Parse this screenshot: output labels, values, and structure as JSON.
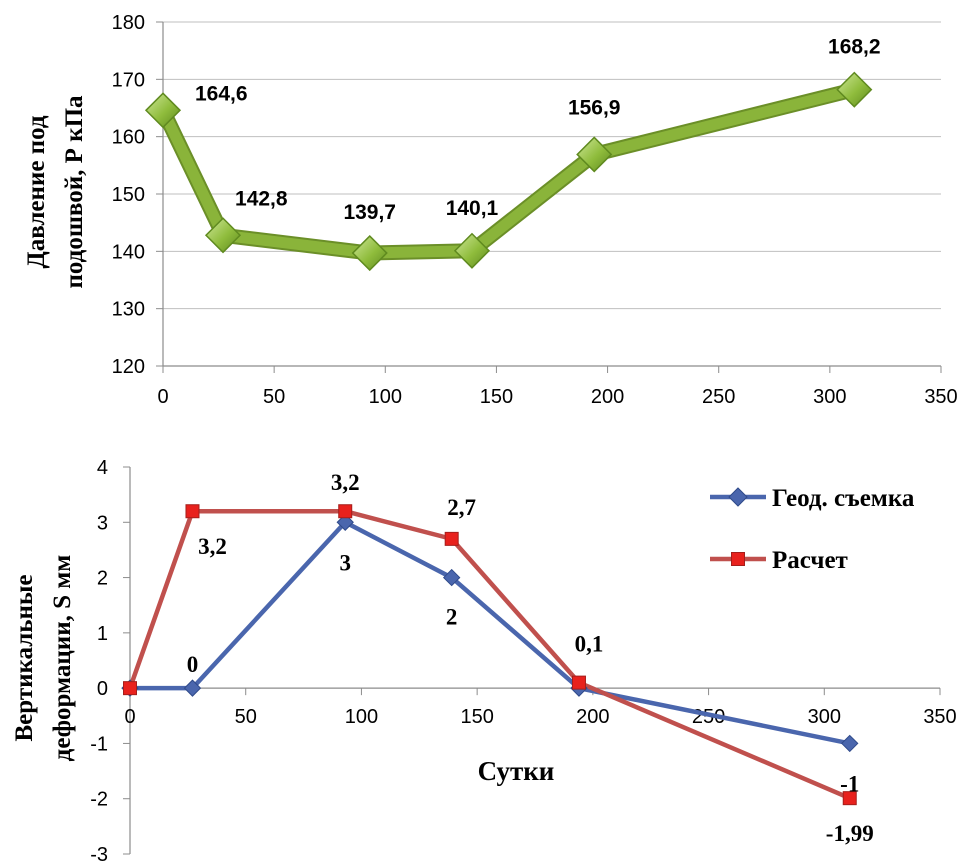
{
  "chart_data": [
    {
      "type": "line",
      "title": "",
      "xlabel": "",
      "ylabel_lines": [
        "Давление под",
        "подошвой, Р кПа"
      ],
      "xlim": [
        0,
        350
      ],
      "ylim": [
        120,
        180
      ],
      "xticks": [
        0,
        50,
        100,
        150,
        200,
        250,
        300,
        350
      ],
      "yticks": [
        120,
        130,
        140,
        150,
        160,
        170,
        180
      ],
      "grid": "horizontal",
      "legend": "none",
      "series": [
        {
          "color": "#8ab43a",
          "marker": "diamond",
          "x": [
            0,
            27,
            93,
            139,
            194,
            311
          ],
          "y": [
            164.6,
            142.8,
            139.7,
            140.1,
            156.9,
            168.2
          ],
          "labels": [
            "164,6",
            "142,8",
            "139,7",
            "140,1",
            "156,9",
            "168,2"
          ]
        }
      ]
    },
    {
      "type": "line",
      "title": "",
      "xlabel": "Сутки",
      "ylabel_lines": [
        "Вертикальные",
        "деформации, S мм"
      ],
      "xlim": [
        0,
        350
      ],
      "ylim": [
        -3,
        4
      ],
      "xticks": [
        0,
        50,
        100,
        150,
        200,
        250,
        300,
        350
      ],
      "yticks": [
        -3,
        -2,
        -1,
        0,
        1,
        2,
        3,
        4
      ],
      "grid": "none",
      "legend": "right",
      "series": [
        {
          "name": "Геод. съемка",
          "color": "#4a66ad",
          "marker": "diamond",
          "x": [
            0,
            27,
            93,
            139,
            194,
            311
          ],
          "y": [
            0,
            0,
            3,
            2,
            0,
            -1
          ],
          "labels": [
            "",
            "0",
            "3",
            "2",
            "",
            "-1"
          ]
        },
        {
          "name": "Расчет",
          "color": "#c0504d",
          "marker": "square",
          "x": [
            0,
            27,
            93,
            139,
            194,
            311
          ],
          "y": [
            0,
            3.2,
            3.2,
            2.7,
            0.1,
            -1.99
          ],
          "labels": [
            "",
            "3,2",
            "3,2",
            "2,7",
            "0,1",
            "-1,99"
          ]
        }
      ]
    }
  ]
}
